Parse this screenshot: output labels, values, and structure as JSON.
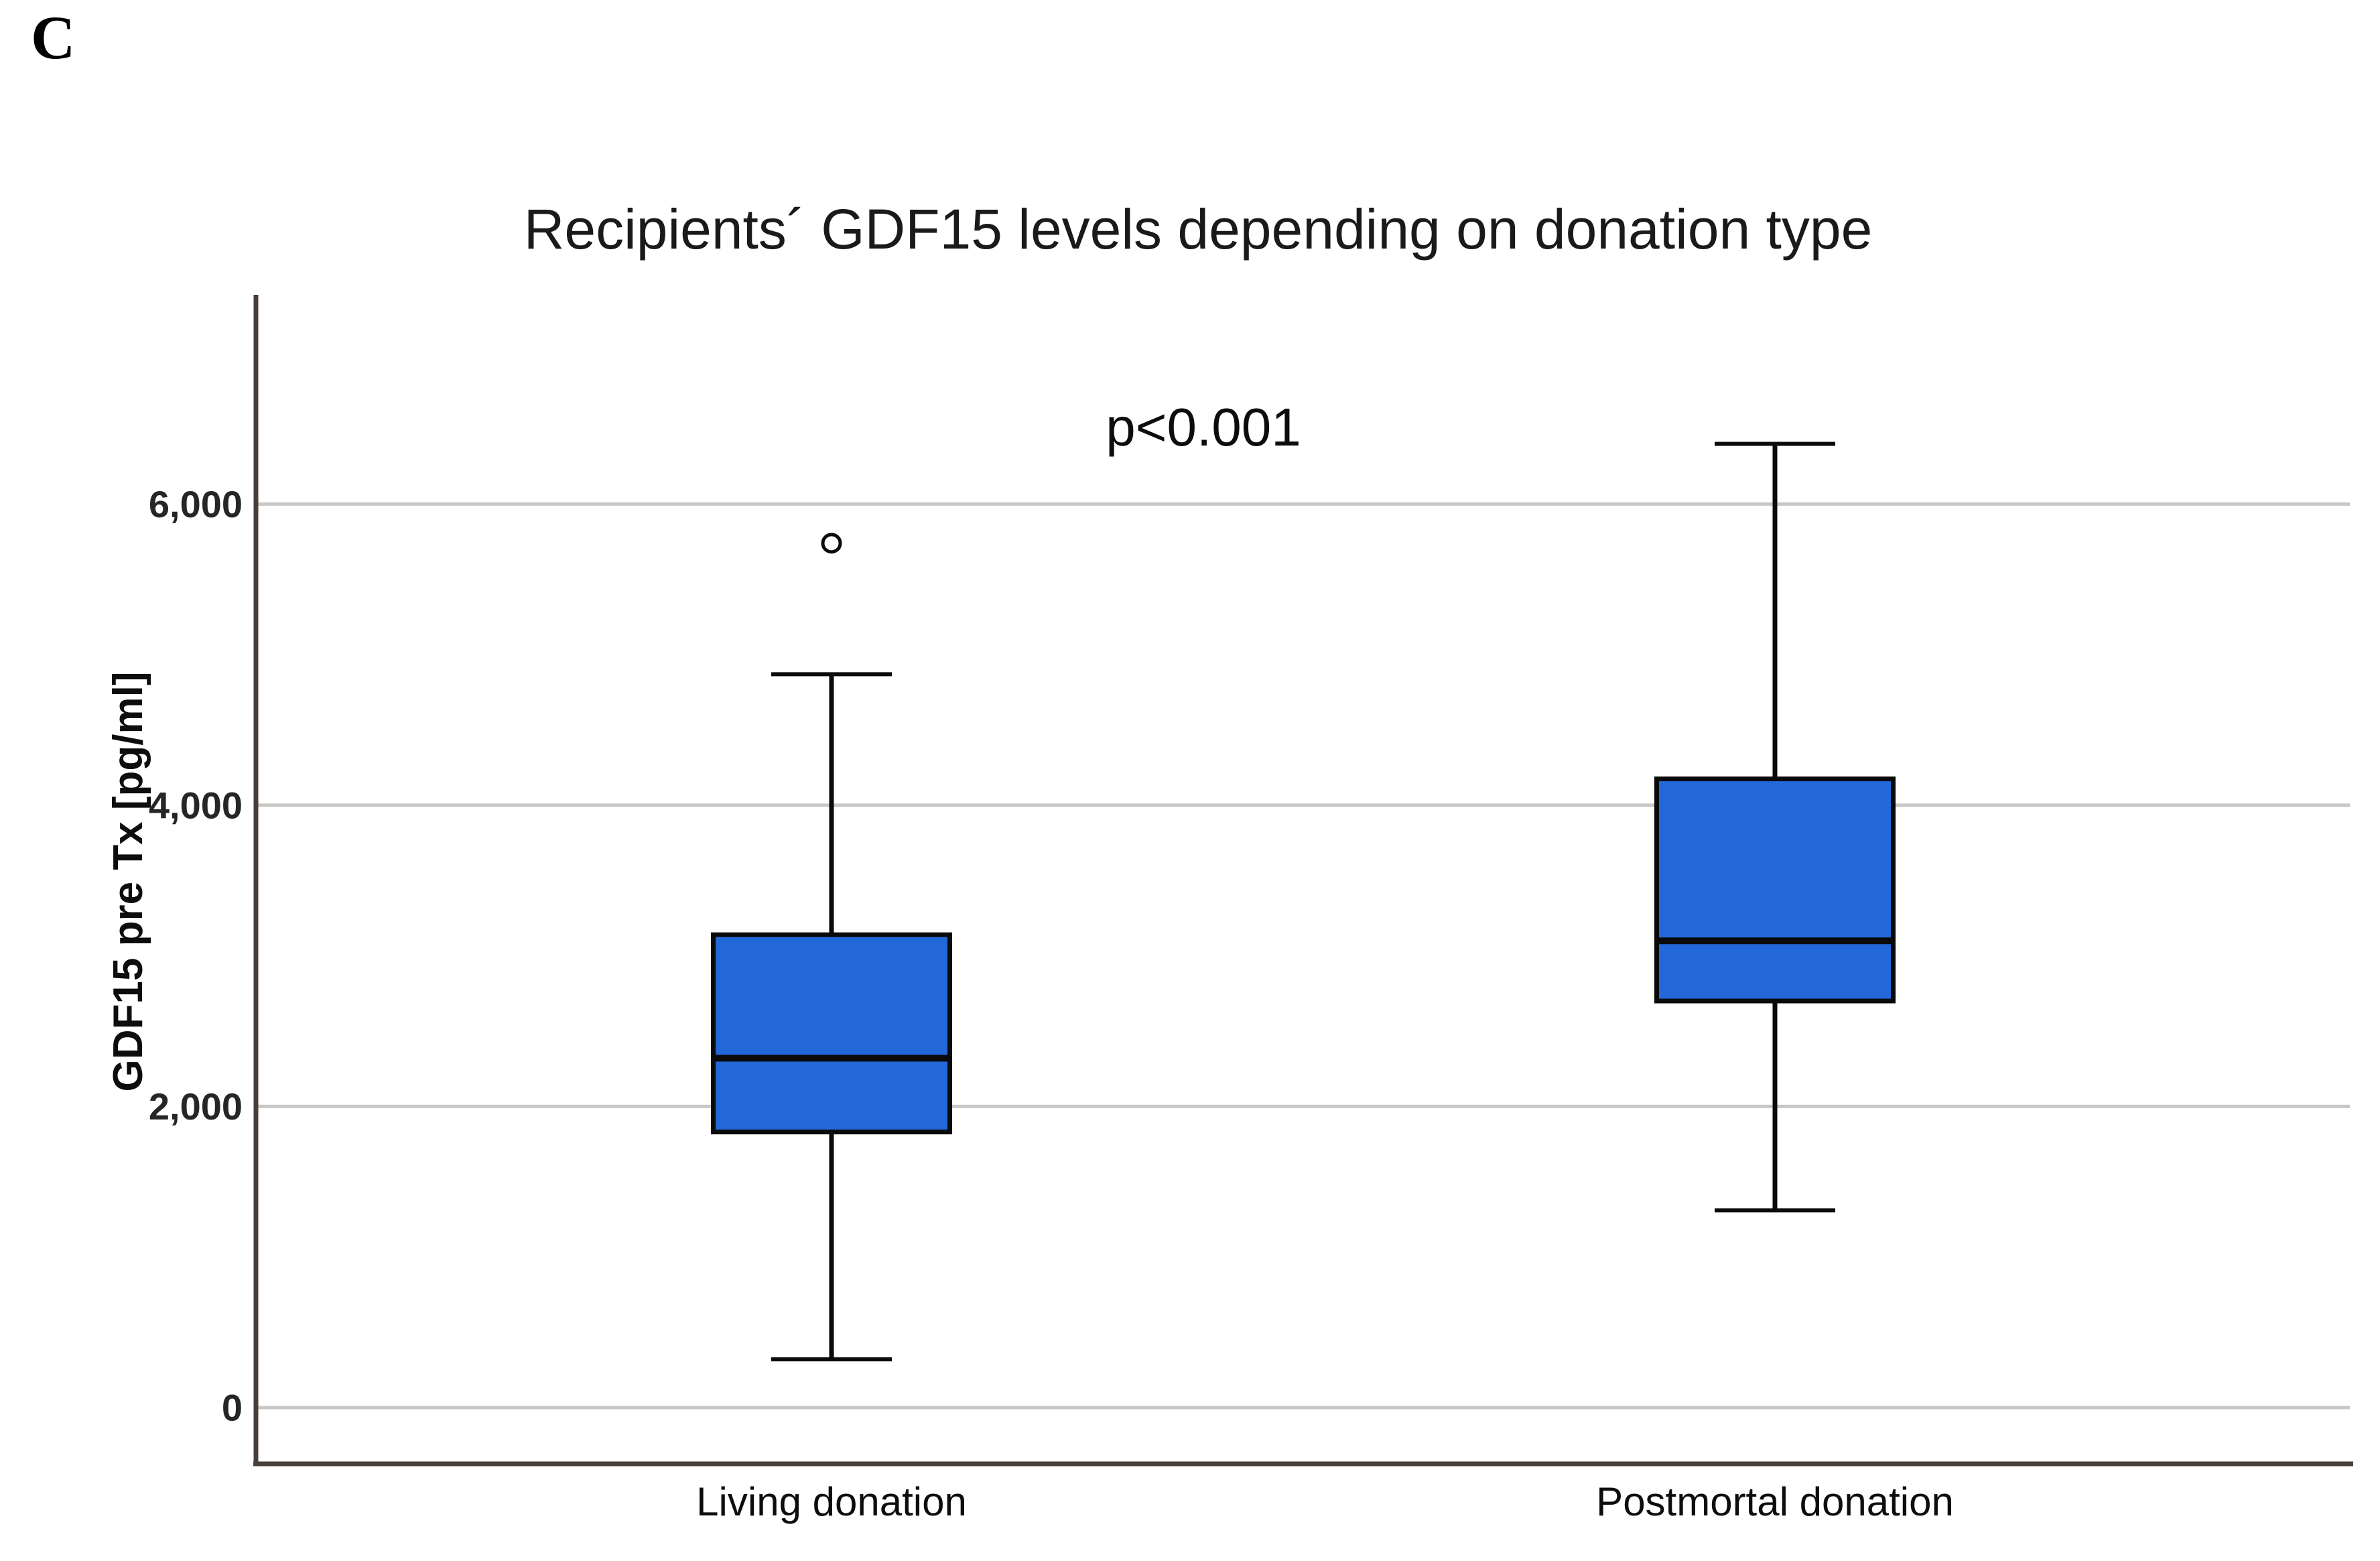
{
  "panel_label": "C",
  "chart_data": {
    "type": "box",
    "title": "Recipients´ GDF15 levels depending on donation type",
    "annotation": "p<0.001",
    "xlabel": "",
    "ylabel": "GDF15 pre Tx [pg/ml]",
    "ylim": [
      -374,
      7390
    ],
    "grid": "horizontal",
    "legend": "none",
    "yticks": [
      {
        "value": 0,
        "label": "0"
      },
      {
        "value": 2000,
        "label": "2,000"
      },
      {
        "value": 4000,
        "label": "4,000"
      },
      {
        "value": 6000,
        "label": "6,000"
      }
    ],
    "categories": [
      "Living donation",
      "Postmortal donation"
    ],
    "series": [
      {
        "name": "Living donation",
        "whisker_low": 320,
        "q1": 1830,
        "median": 2320,
        "q3": 3140,
        "whisker_high": 4870,
        "outliers": [
          5740
        ]
      },
      {
        "name": "Postmortal donation",
        "whisker_low": 1310,
        "q1": 2700,
        "median": 3100,
        "q3": 4175,
        "whisker_high": 6400,
        "outliers": []
      }
    ],
    "colors": {
      "box_fill": "#2268d8",
      "box_stroke": "#0a0a0a",
      "median": "#0a0a0a",
      "whisker": "#0a0a0a",
      "outlier_stroke": "#0a0a0a",
      "outlier_fill": "#ffffff",
      "gridline": "#c9c6c3",
      "axis": "#4a3e38",
      "text": "#1a1a1a"
    }
  }
}
